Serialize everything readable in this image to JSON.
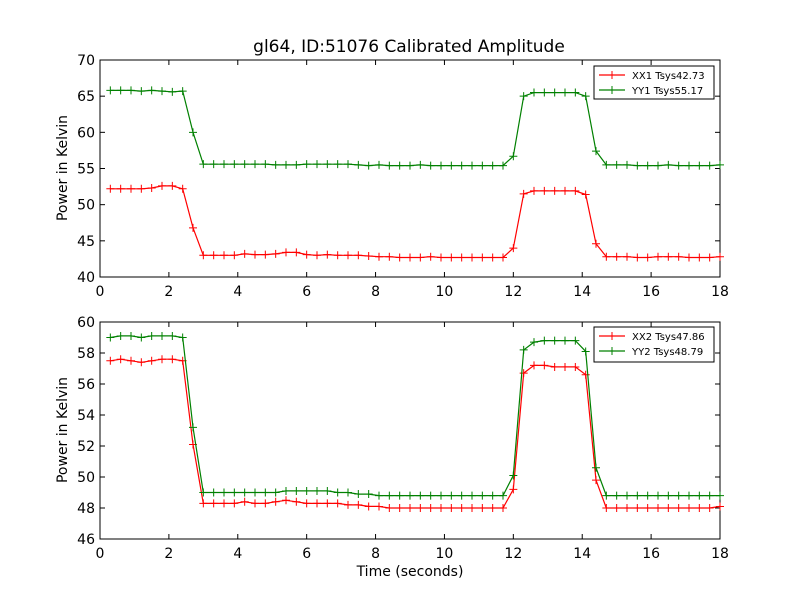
{
  "colors": {
    "XX": "#ff0000",
    "YY": "#008000",
    "axes": "#000000",
    "background": "#ffffff"
  },
  "chart_data": [
    {
      "type": "line",
      "title": "gl64, ID:51076 Calibrated Amplitude",
      "xlabel": "",
      "ylabel": "Power in Kelvin",
      "xlim": [
        0,
        18
      ],
      "ylim": [
        40,
        70
      ],
      "xticks": [
        0,
        2,
        4,
        6,
        8,
        10,
        12,
        14,
        16,
        18
      ],
      "yticks": [
        40,
        45,
        50,
        55,
        60,
        65,
        70
      ],
      "legend_position": "top-right",
      "marker": "+",
      "x": [
        0.3,
        0.6,
        0.9,
        1.2,
        1.5,
        1.8,
        2.1,
        2.4,
        2.7,
        3.0,
        3.3,
        3.6,
        3.9,
        4.2,
        4.5,
        4.8,
        5.1,
        5.4,
        5.7,
        6.0,
        6.3,
        6.6,
        6.9,
        7.2,
        7.5,
        7.8,
        8.1,
        8.4,
        8.7,
        9.0,
        9.3,
        9.6,
        9.9,
        10.2,
        10.5,
        10.8,
        11.1,
        11.4,
        11.7,
        12.0,
        12.3,
        12.6,
        12.9,
        13.2,
        13.5,
        13.8,
        14.1,
        14.4,
        14.7,
        15.0,
        15.3,
        15.6,
        15.9,
        16.2,
        16.5,
        16.8,
        17.1,
        17.4,
        17.7,
        18.0
      ],
      "series": [
        {
          "name": "XX1 Tsys42.73",
          "color": "#ff0000",
          "values": [
            52.2,
            52.2,
            52.2,
            52.2,
            52.3,
            52.6,
            52.6,
            52.2,
            46.8,
            43.0,
            43.0,
            43.0,
            43.0,
            43.2,
            43.1,
            43.1,
            43.2,
            43.4,
            43.4,
            43.1,
            43.0,
            43.1,
            43.0,
            43.0,
            43.0,
            42.9,
            42.8,
            42.8,
            42.7,
            42.7,
            42.7,
            42.8,
            42.7,
            42.7,
            42.7,
            42.7,
            42.7,
            42.7,
            42.7,
            44.0,
            51.5,
            51.9,
            51.9,
            51.9,
            51.9,
            51.9,
            51.4,
            44.6,
            42.8,
            42.8,
            42.8,
            42.7,
            42.7,
            42.8,
            42.8,
            42.8,
            42.7,
            42.7,
            42.7,
            42.8
          ]
        },
        {
          "name": "YY1 Tsys55.17",
          "color": "#008000",
          "values": [
            65.8,
            65.8,
            65.8,
            65.7,
            65.8,
            65.7,
            65.6,
            65.7,
            60.0,
            55.6,
            55.6,
            55.6,
            55.6,
            55.6,
            55.6,
            55.6,
            55.5,
            55.5,
            55.5,
            55.6,
            55.6,
            55.6,
            55.6,
            55.6,
            55.5,
            55.4,
            55.5,
            55.4,
            55.4,
            55.4,
            55.5,
            55.4,
            55.4,
            55.4,
            55.4,
            55.4,
            55.4,
            55.4,
            55.4,
            56.7,
            65.0,
            65.5,
            65.5,
            65.5,
            65.5,
            65.5,
            65.0,
            57.4,
            55.5,
            55.5,
            55.5,
            55.4,
            55.4,
            55.4,
            55.5,
            55.4,
            55.4,
            55.4,
            55.4,
            55.5
          ]
        }
      ]
    },
    {
      "type": "line",
      "title": "",
      "xlabel": "Time (seconds)",
      "ylabel": "Power in Kelvin",
      "xlim": [
        0,
        18
      ],
      "ylim": [
        46,
        60
      ],
      "xticks": [
        0,
        2,
        4,
        6,
        8,
        10,
        12,
        14,
        16,
        18
      ],
      "yticks": [
        46,
        48,
        50,
        52,
        54,
        56,
        58,
        60
      ],
      "legend_position": "top-right",
      "marker": "+",
      "x": [
        0.3,
        0.6,
        0.9,
        1.2,
        1.5,
        1.8,
        2.1,
        2.4,
        2.7,
        3.0,
        3.3,
        3.6,
        3.9,
        4.2,
        4.5,
        4.8,
        5.1,
        5.4,
        5.7,
        6.0,
        6.3,
        6.6,
        6.9,
        7.2,
        7.5,
        7.8,
        8.1,
        8.4,
        8.7,
        9.0,
        9.3,
        9.6,
        9.9,
        10.2,
        10.5,
        10.8,
        11.1,
        11.4,
        11.7,
        12.0,
        12.3,
        12.6,
        12.9,
        13.2,
        13.5,
        13.8,
        14.1,
        14.4,
        14.7,
        15.0,
        15.3,
        15.6,
        15.9,
        16.2,
        16.5,
        16.8,
        17.1,
        17.4,
        17.7,
        18.0
      ],
      "series": [
        {
          "name": "XX2 Tsys47.86",
          "color": "#ff0000",
          "values": [
            57.5,
            57.6,
            57.5,
            57.4,
            57.5,
            57.6,
            57.6,
            57.5,
            52.1,
            48.3,
            48.3,
            48.3,
            48.3,
            48.4,
            48.3,
            48.3,
            48.4,
            48.5,
            48.4,
            48.3,
            48.3,
            48.3,
            48.3,
            48.2,
            48.2,
            48.1,
            48.1,
            48.0,
            48.0,
            48.0,
            48.0,
            48.0,
            48.0,
            48.0,
            48.0,
            48.0,
            48.0,
            48.0,
            48.0,
            49.2,
            56.7,
            57.2,
            57.2,
            57.1,
            57.1,
            57.1,
            56.6,
            49.8,
            48.0,
            48.0,
            48.0,
            48.0,
            48.0,
            48.0,
            48.0,
            48.0,
            48.0,
            48.0,
            48.0,
            48.1
          ]
        },
        {
          "name": "YY2 Tsys48.79",
          "color": "#008000",
          "values": [
            59.0,
            59.1,
            59.1,
            59.0,
            59.1,
            59.1,
            59.1,
            59.0,
            53.2,
            49.0,
            49.0,
            49.0,
            49.0,
            49.0,
            49.0,
            49.0,
            49.0,
            49.1,
            49.1,
            49.1,
            49.1,
            49.1,
            49.0,
            49.0,
            48.9,
            48.9,
            48.8,
            48.8,
            48.8,
            48.8,
            48.8,
            48.8,
            48.8,
            48.8,
            48.8,
            48.8,
            48.8,
            48.8,
            48.8,
            50.1,
            58.2,
            58.7,
            58.8,
            58.8,
            58.8,
            58.8,
            58.1,
            50.6,
            48.8,
            48.8,
            48.8,
            48.8,
            48.8,
            48.8,
            48.8,
            48.8,
            48.8,
            48.8,
            48.8,
            48.8
          ]
        }
      ]
    }
  ]
}
